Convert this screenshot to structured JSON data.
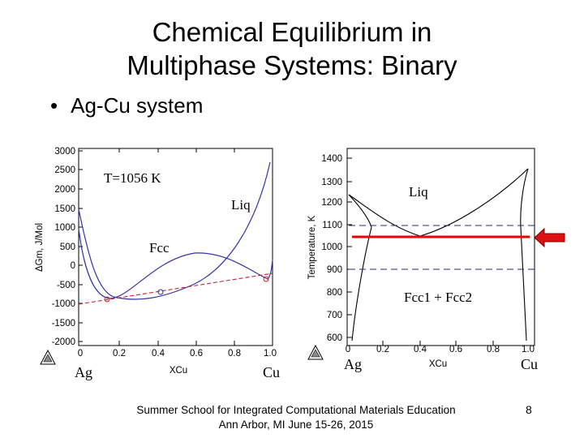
{
  "slide": {
    "title_line1": "Chemical Equilibrium in",
    "title_line2": "Multiphase Systems: Binary",
    "bullet": "Ag-Cu system",
    "footer_line1": "Summer School for Integrated Computational Materials Education",
    "footer_line2": "Ann Arbor, MI  June 15-26, 2015",
    "page_number": "8"
  },
  "left_plot": {
    "annotation": "T=1056 K",
    "liq_label": "Liq",
    "fcc_label": "Fcc",
    "ylabel": "ΔGm, J/Mol",
    "xlabel": "XCu",
    "left_element": "Ag",
    "right_element": "Cu",
    "yticks": [
      "3000",
      "2500",
      "2000",
      "1500",
      "1000",
      "500",
      "0",
      "-500",
      "-1000",
      "-1500",
      "-2000"
    ],
    "xticks": [
      "0",
      "0.2",
      "0.4",
      "0.6",
      "0.8",
      "1.0"
    ]
  },
  "right_plot": {
    "liq_label": "Liq",
    "two_phase_label": "Fcc1 + Fcc2",
    "ylabel": "Temperature, K",
    "xlabel": "XCu",
    "left_element": "Ag",
    "right_element": "Cu",
    "yticks": [
      "1400",
      "1300",
      "1200",
      "1100",
      "1000",
      "900",
      "800",
      "700",
      "600"
    ],
    "xticks": [
      "0",
      "0.2",
      "0.4",
      "0.6",
      "0.8",
      "1.0"
    ]
  },
  "colors": {
    "curve": "#3333aa",
    "tangent": "#cc2233",
    "arrow": "#dd1111",
    "marker": "#ee0000"
  }
}
